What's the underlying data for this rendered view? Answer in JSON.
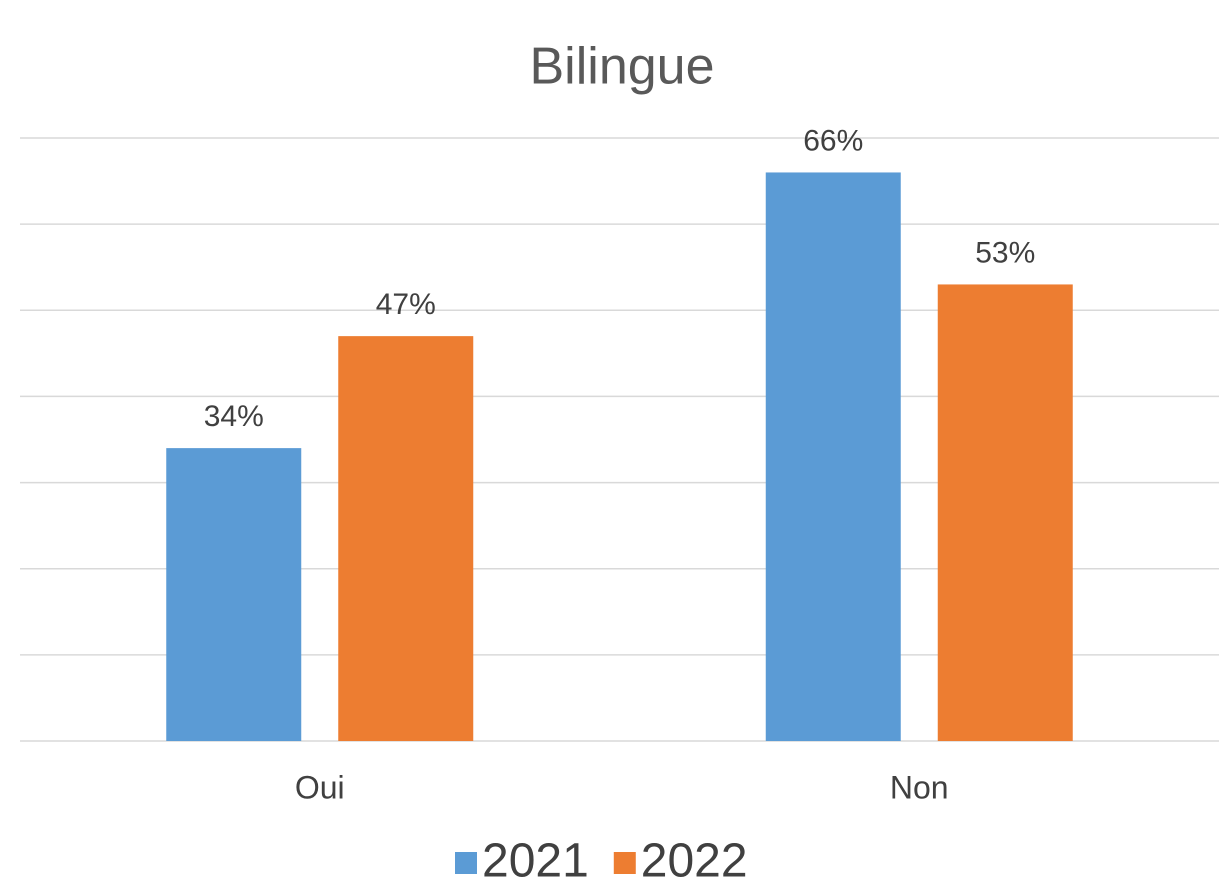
{
  "chart_data": {
    "type": "bar",
    "title": "Bilingue",
    "categories": [
      "Oui",
      "Non"
    ],
    "series": [
      {
        "name": "2021",
        "color": "#5b9bd5",
        "values": [
          34,
          66
        ],
        "value_labels": [
          "34%",
          "66%"
        ]
      },
      {
        "name": "2022",
        "color": "#ed7d31",
        "values": [
          47,
          53
        ],
        "value_labels": [
          "47%",
          "53%"
        ]
      }
    ],
    "ylim": [
      0,
      70
    ],
    "yticks": [
      0,
      10,
      20,
      30,
      40,
      50,
      60,
      70
    ],
    "grid": true,
    "legend": "bottom"
  }
}
